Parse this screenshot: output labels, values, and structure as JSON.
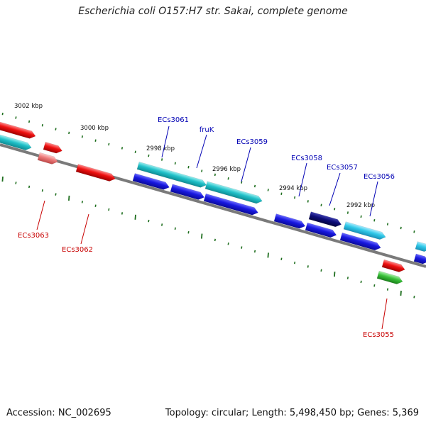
{
  "title": "Escherichia coli O157:H7 str. Sakai, complete genome",
  "footer": {
    "accession": "Accession: NC_002695",
    "summary": "Topology: circular; Length: 5,498,450 bp; Genes: 5,369"
  },
  "colors": {
    "backbone": "#7a7a7a",
    "tick": "#1e6e1e",
    "label_top": "#0000b4",
    "label_bottom": "#c80000",
    "cyan": "#20c0c8",
    "light_cyan": "#30c8e8",
    "blue": "#1818e0",
    "navy": "#0c0c78",
    "red": "#ee1010",
    "pink": "#ec7a7a",
    "green": "#38c038"
  },
  "ruler": [
    {
      "label": "3002 kbp"
    },
    {
      "label": "3000 kbp"
    },
    {
      "label": "2998 kbp"
    },
    {
      "label": "2996 kbp"
    },
    {
      "label": "2994 kbp"
    },
    {
      "label": "2992 kbp"
    }
  ],
  "genes": [
    {
      "label": "ECs3061",
      "strand": "top"
    },
    {
      "label": "fruK",
      "strand": "top"
    },
    {
      "label": "ECs3059",
      "strand": "top"
    },
    {
      "label": "ECs3058",
      "strand": "top"
    },
    {
      "label": "ECs3057",
      "strand": "top"
    },
    {
      "label": "ECs3056",
      "strand": "top"
    },
    {
      "label": "ECs3063",
      "strand": "bottom"
    },
    {
      "label": "ECs3062",
      "strand": "bottom"
    },
    {
      "label": "ECs3055",
      "strand": "bottom"
    }
  ]
}
